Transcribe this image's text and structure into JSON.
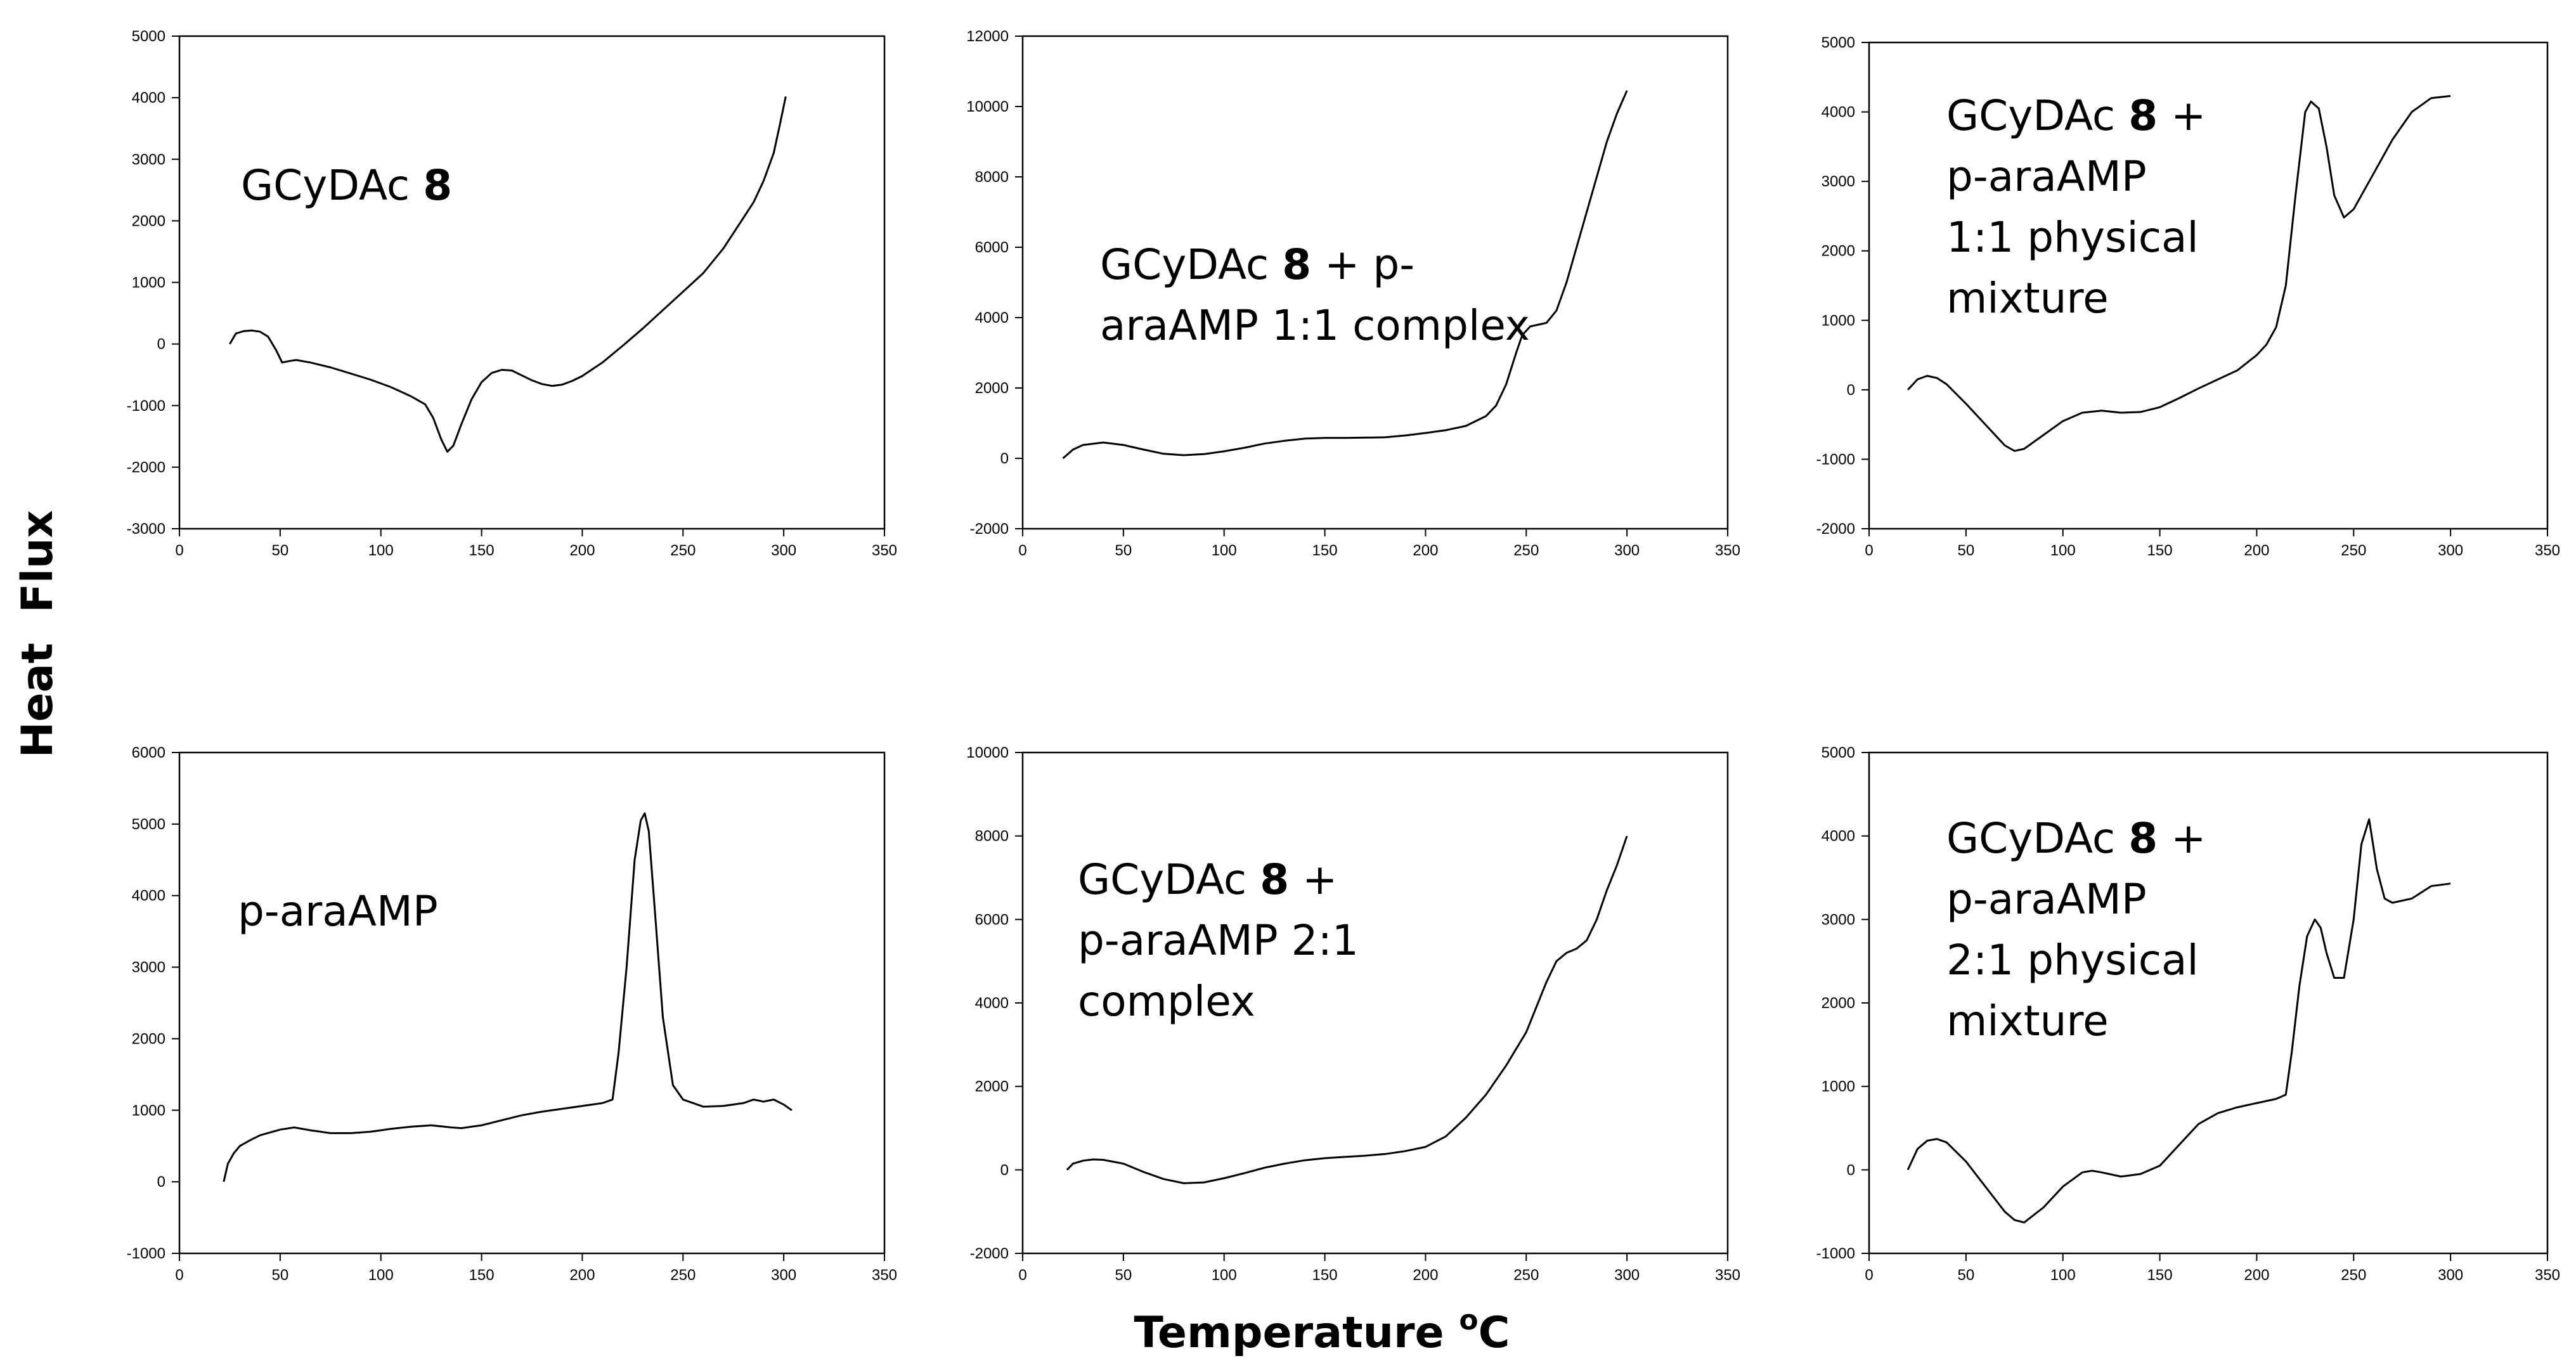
{
  "figure": {
    "ylabel": "Heat  Flux",
    "xlabel_text": "Temperature ",
    "xlabel_superscript": "o",
    "xlabel_unit": "C"
  },
  "chart_data": [
    {
      "type": "line",
      "label_lines": [
        {
          "text": "GCyDAc ",
          "bold": "8",
          "after": ""
        }
      ],
      "xlim": [
        0,
        350
      ],
      "ylim": [
        -3000,
        5000
      ],
      "xticks": [
        0,
        50,
        100,
        150,
        200,
        250,
        300,
        350
      ],
      "yticks": [
        -3000,
        -2000,
        -1000,
        0,
        1000,
        2000,
        3000,
        4000,
        5000
      ],
      "x": [
        25,
        28,
        32,
        36,
        40,
        44,
        48,
        51,
        54,
        58,
        65,
        75,
        85,
        95,
        105,
        115,
        122,
        126,
        130,
        133,
        136,
        140,
        145,
        150,
        155,
        160,
        165,
        170,
        175,
        180,
        185,
        190,
        195,
        200,
        210,
        220,
        230,
        240,
        250,
        260,
        270,
        277,
        285,
        290,
        295,
        298,
        301
      ],
      "y": [
        0,
        170,
        210,
        220,
        200,
        120,
        -100,
        -300,
        -280,
        -260,
        -300,
        -380,
        -480,
        -580,
        -700,
        -850,
        -980,
        -1200,
        -1550,
        -1750,
        -1650,
        -1300,
        -900,
        -620,
        -470,
        -420,
        -430,
        -510,
        -590,
        -650,
        -680,
        -660,
        -600,
        -520,
        -300,
        -30,
        250,
        550,
        850,
        1150,
        1550,
        1900,
        2300,
        2650,
        3100,
        3550,
        4020
      ]
    },
    {
      "type": "line",
      "label_lines": [
        {
          "text": "GCyDAc ",
          "bold": "8",
          "after": " +  p-"
        },
        {
          "text": "araAMP 1:1 complex",
          "bold": "",
          "after": ""
        }
      ],
      "xlim": [
        0,
        350
      ],
      "ylim": [
        -2000,
        12000
      ],
      "xticks": [
        0,
        50,
        100,
        150,
        200,
        250,
        300,
        350
      ],
      "yticks": [
        -2000,
        0,
        2000,
        4000,
        6000,
        8000,
        10000,
        12000
      ],
      "x": [
        20,
        25,
        30,
        40,
        50,
        60,
        70,
        80,
        90,
        100,
        110,
        120,
        130,
        140,
        150,
        160,
        170,
        180,
        190,
        200,
        210,
        220,
        230,
        235,
        240,
        245,
        248,
        252,
        256,
        260,
        265,
        270,
        275,
        280,
        285,
        290,
        295,
        300
      ],
      "y": [
        0,
        250,
        380,
        450,
        380,
        250,
        130,
        90,
        120,
        200,
        300,
        420,
        500,
        560,
        580,
        580,
        590,
        600,
        650,
        720,
        800,
        920,
        1200,
        1500,
        2100,
        3000,
        3500,
        3750,
        3800,
        3850,
        4200,
        5000,
        6000,
        7000,
        8000,
        9000,
        9800,
        10450
      ]
    },
    {
      "type": "line",
      "label_lines": [
        {
          "text": "GCyDAc ",
          "bold": "8",
          "after": " +"
        },
        {
          "text": "p-araAMP",
          "bold": "",
          "after": ""
        },
        {
          "text": "1:1 physical",
          "bold": "",
          "after": ""
        },
        {
          "text": "mixture",
          "bold": "",
          "after": ""
        }
      ],
      "xlim": [
        0,
        350
      ],
      "ylim": [
        -2000,
        5000
      ],
      "xticks": [
        0,
        50,
        100,
        150,
        200,
        250,
        300,
        350
      ],
      "yticks": [
        -2000,
        -1000,
        0,
        1000,
        2000,
        3000,
        4000,
        5000
      ],
      "x": [
        20,
        25,
        30,
        35,
        40,
        50,
        60,
        70,
        75,
        80,
        90,
        100,
        110,
        120,
        130,
        140,
        150,
        160,
        170,
        180,
        190,
        200,
        205,
        210,
        215,
        220,
        225,
        228,
        232,
        236,
        240,
        245,
        250,
        260,
        270,
        280,
        290,
        300
      ],
      "y": [
        0,
        150,
        200,
        170,
        80,
        -200,
        -500,
        -800,
        -880,
        -850,
        -650,
        -450,
        -330,
        -300,
        -330,
        -320,
        -250,
        -120,
        20,
        150,
        280,
        500,
        650,
        900,
        1500,
        2800,
        4000,
        4150,
        4050,
        3500,
        2800,
        2480,
        2600,
        3100,
        3600,
        4000,
        4200,
        4230
      ]
    },
    {
      "type": "line",
      "label_lines": [
        {
          "text": "p-araAMP",
          "bold": "",
          "after": ""
        }
      ],
      "xlim": [
        0,
        350
      ],
      "ylim": [
        -1000,
        6000
      ],
      "xticks": [
        0,
        50,
        100,
        150,
        200,
        250,
        300,
        350
      ],
      "yticks": [
        -1000,
        0,
        1000,
        2000,
        3000,
        4000,
        5000,
        6000
      ],
      "x": [
        22,
        24,
        27,
        30,
        35,
        40,
        50,
        57,
        65,
        75,
        85,
        95,
        105,
        115,
        125,
        135,
        140,
        150,
        160,
        170,
        180,
        190,
        200,
        210,
        215,
        218,
        222,
        226,
        229,
        231,
        233,
        236,
        240,
        245,
        250,
        260,
        270,
        280,
        285,
        290,
        295,
        300,
        304
      ],
      "y": [
        0,
        250,
        400,
        500,
        580,
        650,
        730,
        760,
        720,
        680,
        680,
        700,
        740,
        770,
        790,
        760,
        750,
        790,
        860,
        930,
        980,
        1020,
        1060,
        1100,
        1150,
        1800,
        3000,
        4500,
        5050,
        5150,
        4900,
        3800,
        2300,
        1350,
        1150,
        1050,
        1060,
        1100,
        1150,
        1120,
        1150,
        1080,
        1000
      ]
    },
    {
      "type": "line",
      "label_lines": [
        {
          "text": "GCyDAc ",
          "bold": "8",
          "after": " +"
        },
        {
          "text": "p-araAMP 2:1",
          "bold": "",
          "after": ""
        },
        {
          "text": "complex",
          "bold": "",
          "after": ""
        }
      ],
      "xlim": [
        0,
        350
      ],
      "ylim": [
        -2000,
        10000
      ],
      "xticks": [
        0,
        50,
        100,
        150,
        200,
        250,
        300,
        350
      ],
      "yticks": [
        -2000,
        0,
        2000,
        4000,
        6000,
        8000,
        10000
      ],
      "x": [
        22,
        25,
        30,
        35,
        40,
        50,
        60,
        70,
        80,
        90,
        100,
        110,
        120,
        130,
        140,
        150,
        160,
        170,
        180,
        190,
        200,
        210,
        220,
        230,
        240,
        250,
        255,
        260,
        265,
        270,
        275,
        280,
        285,
        290,
        295,
        300
      ],
      "y": [
        0,
        150,
        220,
        250,
        240,
        150,
        -50,
        -220,
        -320,
        -300,
        -200,
        -80,
        50,
        150,
        230,
        280,
        310,
        340,
        380,
        450,
        550,
        800,
        1250,
        1800,
        2500,
        3300,
        3900,
        4500,
        5000,
        5200,
        5300,
        5500,
        6000,
        6700,
        7300,
        8000
      ]
    },
    {
      "type": "line",
      "label_lines": [
        {
          "text": "GCyDAc ",
          "bold": "8",
          "after": " +"
        },
        {
          "text": "p-araAMP",
          "bold": "",
          "after": ""
        },
        {
          "text": "2:1 physical",
          "bold": "",
          "after": ""
        },
        {
          "text": "mixture",
          "bold": "",
          "after": ""
        }
      ],
      "xlim": [
        0,
        350
      ],
      "ylim": [
        -1000,
        5000
      ],
      "xticks": [
        0,
        50,
        100,
        150,
        200,
        250,
        300,
        350
      ],
      "yticks": [
        -1000,
        0,
        1000,
        2000,
        3000,
        4000,
        5000
      ],
      "x": [
        20,
        25,
        30,
        35,
        40,
        50,
        60,
        70,
        75,
        80,
        90,
        100,
        110,
        115,
        120,
        130,
        140,
        150,
        160,
        170,
        180,
        190,
        200,
        210,
        215,
        218,
        222,
        226,
        230,
        233,
        236,
        240,
        245,
        250,
        254,
        258,
        262,
        266,
        270,
        280,
        290,
        300
      ],
      "y": [
        0,
        250,
        350,
        370,
        330,
        100,
        -200,
        -500,
        -600,
        -630,
        -450,
        -200,
        -30,
        -10,
        -30,
        -80,
        -50,
        50,
        300,
        550,
        680,
        750,
        800,
        850,
        900,
        1400,
        2200,
        2800,
        3000,
        2900,
        2600,
        2300,
        2300,
        3000,
        3900,
        4200,
        3600,
        3250,
        3200,
        3250,
        3400,
        3430
      ]
    }
  ]
}
